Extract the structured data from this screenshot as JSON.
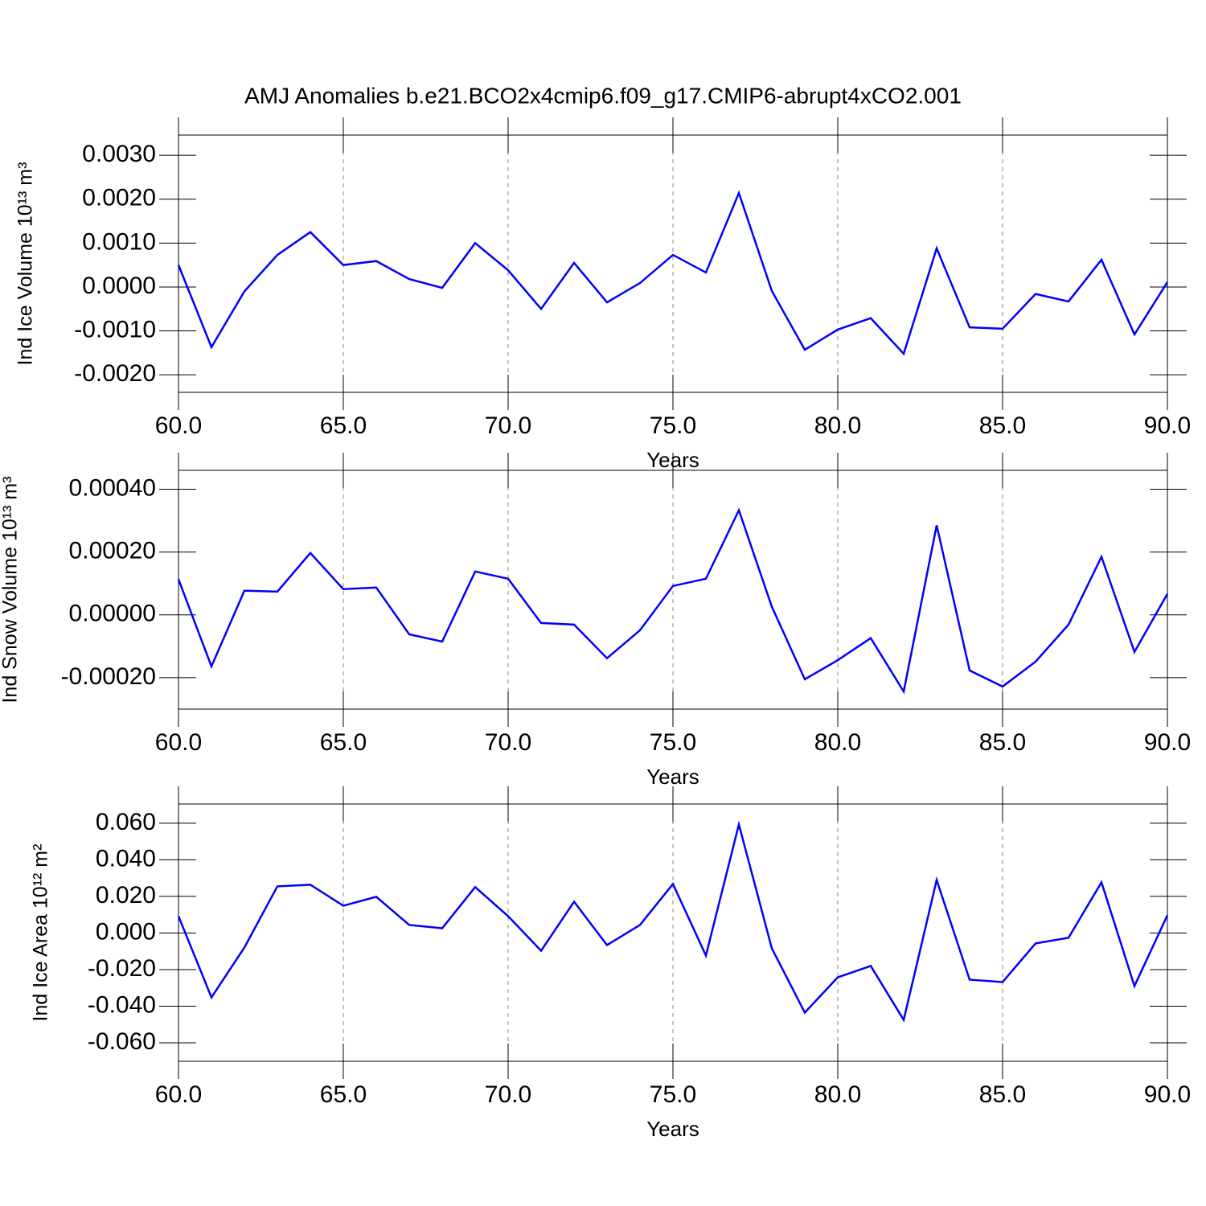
{
  "title": "AMJ Anomalies b.e21.BCO2x4cmip6.f09_g17.CMIP6-abrupt4xCO2.001",
  "chart_data": [
    {
      "type": "line",
      "xlabel": "Years",
      "ylabel": "Ind Ice Volume 10¹³ m³",
      "x": [
        60,
        61,
        62,
        63,
        64,
        65,
        66,
        67,
        68,
        69,
        70,
        71,
        72,
        73,
        74,
        75,
        76,
        77,
        78,
        79,
        80,
        81,
        82,
        83,
        84,
        85,
        86,
        87,
        88,
        89,
        90
      ],
      "series": [
        {
          "color": "#0000ff",
          "values": [
            0.0005,
            -0.00137,
            -0.0001,
            0.00073,
            0.00125,
            0.0005,
            0.00059,
            0.00018,
            -2e-05,
            0.001,
            0.00038,
            -0.0005,
            0.00055,
            -0.00035,
            9e-05,
            0.00073,
            0.00033,
            0.00214,
            -9e-05,
            -0.00143,
            -0.00097,
            -0.00071,
            -0.00152,
            0.00088,
            -0.00092,
            -0.00095,
            -0.00016,
            -0.00033,
            0.00062,
            -0.00108,
            0.00011
          ]
        }
      ],
      "xlim": [
        60,
        90
      ],
      "xticks": [
        {
          "value": 60,
          "label": "60.0"
        },
        {
          "value": 65,
          "label": "65.0"
        },
        {
          "value": 70,
          "label": "70.0"
        },
        {
          "value": 75,
          "label": "75.0"
        },
        {
          "value": 80,
          "label": "80.0"
        },
        {
          "value": 85,
          "label": "85.0"
        },
        {
          "value": 90,
          "label": "90.0"
        }
      ],
      "ylim": [
        -0.0024,
        0.00346
      ],
      "yticks": [
        {
          "value": -0.002,
          "label": "-0.0020"
        },
        {
          "value": -0.001,
          "label": "-0.0010"
        },
        {
          "value": 0,
          "label": "0.0000"
        },
        {
          "value": 0.001,
          "label": "0.0010"
        },
        {
          "value": 0.002,
          "label": "0.0020"
        },
        {
          "value": 0.003,
          "label": "0.0030"
        }
      ],
      "xgrid": true
    },
    {
      "type": "line",
      "xlabel": "Years",
      "ylabel": "Ind Snow Volume 10¹³ m³",
      "x": [
        60,
        61,
        62,
        63,
        64,
        65,
        66,
        67,
        68,
        69,
        70,
        71,
        72,
        73,
        74,
        75,
        76,
        77,
        78,
        79,
        80,
        81,
        82,
        83,
        84,
        85,
        86,
        87,
        88,
        89,
        90
      ],
      "series": [
        {
          "color": "#0000ff",
          "values": [
            0.000113,
            -0.000164,
            7.7e-05,
            7.4e-05,
            0.000197,
            8.2e-05,
            8.7e-05,
            -6.2e-05,
            -8.5e-05,
            0.000138,
            0.000115,
            -2.6e-05,
            -3.1e-05,
            -0.000138,
            -4.9e-05,
            9.2e-05,
            0.000115,
            0.000333,
            2.6e-05,
            -0.000205,
            -0.000144,
            -7.4e-05,
            -0.000244,
            0.000285,
            -0.000177,
            -0.000228,
            -0.000149,
            -3.1e-05,
            0.000185,
            -0.000118,
            6.7e-05
          ]
        }
      ],
      "xlim": [
        60,
        90
      ],
      "xticks": [
        {
          "value": 60,
          "label": "60.0"
        },
        {
          "value": 65,
          "label": "65.0"
        },
        {
          "value": 70,
          "label": "70.0"
        },
        {
          "value": 75,
          "label": "75.0"
        },
        {
          "value": 80,
          "label": "80.0"
        },
        {
          "value": 85,
          "label": "85.0"
        },
        {
          "value": 90,
          "label": "90.0"
        }
      ],
      "ylim": [
        -0.0003,
        0.00046
      ],
      "yticks": [
        {
          "value": -0.0002,
          "label": "-0.00020"
        },
        {
          "value": 0,
          "label": "0.00000"
        },
        {
          "value": 0.0002,
          "label": "0.00020"
        },
        {
          "value": 0.0004,
          "label": "0.00040"
        }
      ],
      "xgrid": true
    },
    {
      "type": "line",
      "xlabel": "Years",
      "ylabel": "Ind Ice Area 10¹² m²",
      "x": [
        60,
        61,
        62,
        63,
        64,
        65,
        66,
        67,
        68,
        69,
        70,
        71,
        72,
        73,
        74,
        75,
        76,
        77,
        78,
        79,
        80,
        81,
        82,
        83,
        84,
        85,
        86,
        87,
        88,
        89,
        90
      ],
      "series": [
        {
          "color": "#0000ff",
          "values": [
            0.0092,
            -0.0352,
            -0.0079,
            0.0255,
            0.0264,
            0.0149,
            0.0198,
            0.0044,
            0.0026,
            0.0251,
            0.0092,
            -0.0097,
            0.0171,
            -0.0066,
            0.0044,
            0.0268,
            -0.0123,
            0.0593,
            -0.0084,
            -0.0435,
            -0.0242,
            -0.018,
            -0.0475,
            0.029,
            -0.0255,
            -0.0268,
            -0.0057,
            -0.0026,
            0.0277,
            -0.029,
            0.0097
          ]
        }
      ],
      "xlim": [
        60,
        90
      ],
      "xticks": [
        {
          "value": 60,
          "label": "60.0"
        },
        {
          "value": 65,
          "label": "65.0"
        },
        {
          "value": 70,
          "label": "70.0"
        },
        {
          "value": 75,
          "label": "75.0"
        },
        {
          "value": 80,
          "label": "80.0"
        },
        {
          "value": 85,
          "label": "85.0"
        },
        {
          "value": 90,
          "label": "90.0"
        }
      ],
      "ylim": [
        -0.0701,
        0.0705
      ],
      "yticks": [
        {
          "value": -0.06,
          "label": "-0.060"
        },
        {
          "value": -0.04,
          "label": "-0.040"
        },
        {
          "value": -0.02,
          "label": "-0.020"
        },
        {
          "value": 0,
          "label": "0.000"
        },
        {
          "value": 0.02,
          "label": "0.020"
        },
        {
          "value": 0.04,
          "label": "0.040"
        },
        {
          "value": 0.06,
          "label": "0.060"
        }
      ],
      "xgrid": true
    }
  ]
}
